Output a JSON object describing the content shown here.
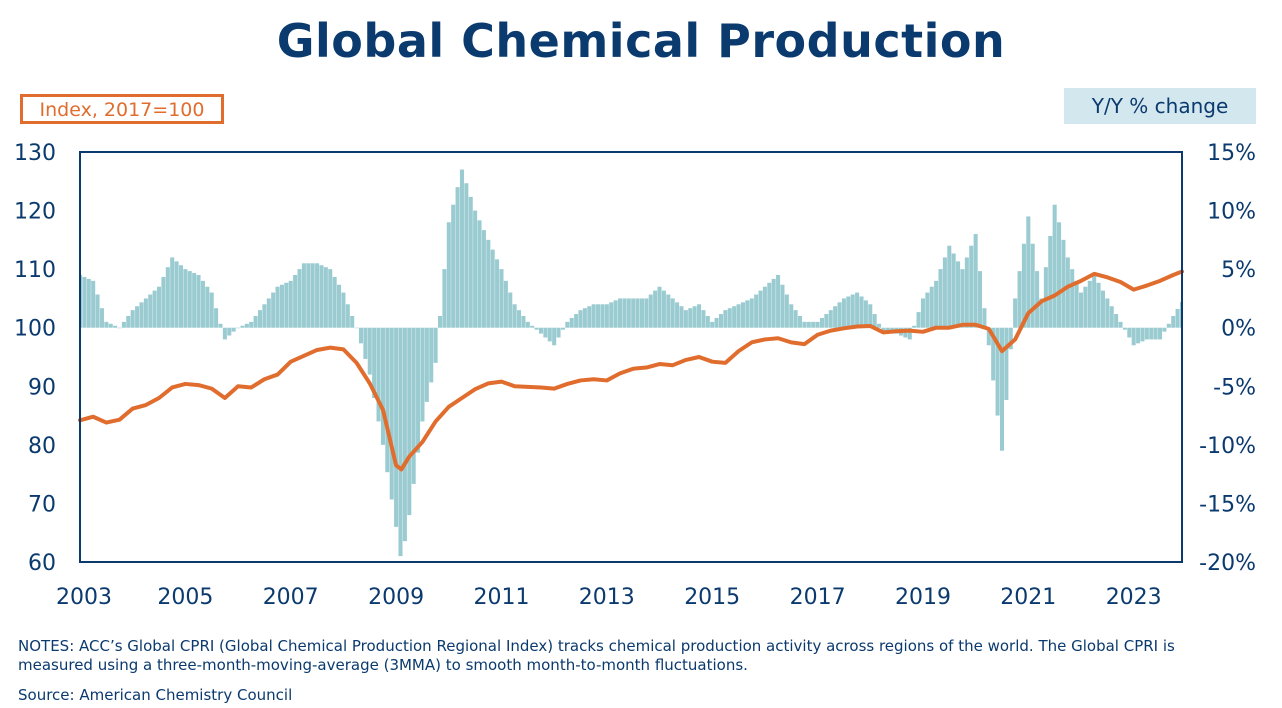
{
  "title": "Global Chemical Production",
  "notes": "NOTES: ACC’s Global CPRI (Global Chemical Production Regional Index) tracks chemical production activity across regions of the world. The Global CPRI is measured using a three-month-moving-average (3MMA) to smooth month-to-month fluctuations.",
  "source": "Source: American Chemistry Council",
  "colors": {
    "title": "#0b3a6e",
    "index_line": "#e06d2d",
    "yoy_bars": "#9acbd1",
    "axis_text": "#0b3a6e",
    "right_label_bg": "#d3e7ef"
  },
  "chart_data": {
    "type": "bar+line",
    "title": "Global Chemical Production",
    "left_axis_label": "Index, 2017=100",
    "right_axis_label": "Y/Y % change",
    "x_range": [
      2003.0,
      2023.917
    ],
    "x_ticks": [
      "2003",
      "2005",
      "2007",
      "2009",
      "2011",
      "2013",
      "2015",
      "2017",
      "2019",
      "2021",
      "2023"
    ],
    "ylim_left": [
      60,
      130
    ],
    "yticks_left": [
      "60",
      "70",
      "80",
      "90",
      "100",
      "110",
      "120",
      "130"
    ],
    "ylim_right": [
      -20,
      15
    ],
    "yticks_right": [
      "-20%",
      "-15%",
      "-10%",
      "-5%",
      "0%",
      "5%",
      "10%",
      "15%"
    ],
    "grid": false,
    "series": [
      {
        "name": "Index, 2017=100",
        "kind": "line",
        "axis": "left",
        "points": [
          [
            2003.0,
            84.2
          ],
          [
            2003.25,
            84.8
          ],
          [
            2003.5,
            83.8
          ],
          [
            2003.75,
            84.3
          ],
          [
            2004.0,
            86.2
          ],
          [
            2004.25,
            86.8
          ],
          [
            2004.5,
            88.0
          ],
          [
            2004.75,
            89.8
          ],
          [
            2005.0,
            90.4
          ],
          [
            2005.25,
            90.2
          ],
          [
            2005.5,
            89.6
          ],
          [
            2005.75,
            88.0
          ],
          [
            2006.0,
            90.0
          ],
          [
            2006.25,
            89.8
          ],
          [
            2006.5,
            91.2
          ],
          [
            2006.75,
            92.0
          ],
          [
            2007.0,
            94.2
          ],
          [
            2007.25,
            95.2
          ],
          [
            2007.5,
            96.2
          ],
          [
            2007.75,
            96.6
          ],
          [
            2008.0,
            96.3
          ],
          [
            2008.25,
            94.0
          ],
          [
            2008.5,
            90.5
          ],
          [
            2008.75,
            86.0
          ],
          [
            2009.0,
            76.5
          ],
          [
            2009.1,
            75.8
          ],
          [
            2009.25,
            78.0
          ],
          [
            2009.5,
            80.5
          ],
          [
            2009.75,
            84.0
          ],
          [
            2010.0,
            86.5
          ],
          [
            2010.25,
            88.0
          ],
          [
            2010.5,
            89.5
          ],
          [
            2010.75,
            90.5
          ],
          [
            2011.0,
            90.8
          ],
          [
            2011.25,
            90.0
          ],
          [
            2011.5,
            89.9
          ],
          [
            2011.75,
            89.8
          ],
          [
            2012.0,
            89.6
          ],
          [
            2012.25,
            90.4
          ],
          [
            2012.5,
            91.0
          ],
          [
            2012.75,
            91.2
          ],
          [
            2013.0,
            91.0
          ],
          [
            2013.25,
            92.2
          ],
          [
            2013.5,
            93.0
          ],
          [
            2013.75,
            93.2
          ],
          [
            2014.0,
            93.8
          ],
          [
            2014.25,
            93.6
          ],
          [
            2014.5,
            94.5
          ],
          [
            2014.75,
            95.0
          ],
          [
            2015.0,
            94.2
          ],
          [
            2015.25,
            94.0
          ],
          [
            2015.5,
            96.0
          ],
          [
            2015.75,
            97.5
          ],
          [
            2016.0,
            98.0
          ],
          [
            2016.25,
            98.2
          ],
          [
            2016.5,
            97.5
          ],
          [
            2016.75,
            97.2
          ],
          [
            2017.0,
            98.8
          ],
          [
            2017.25,
            99.5
          ],
          [
            2017.5,
            99.9
          ],
          [
            2017.75,
            100.2
          ],
          [
            2018.0,
            100.3
          ],
          [
            2018.25,
            99.2
          ],
          [
            2018.5,
            99.4
          ],
          [
            2018.75,
            99.5
          ],
          [
            2019.0,
            99.3
          ],
          [
            2019.25,
            100.0
          ],
          [
            2019.5,
            100.0
          ],
          [
            2019.75,
            100.5
          ],
          [
            2020.0,
            100.5
          ],
          [
            2020.25,
            99.8
          ],
          [
            2020.5,
            96.0
          ],
          [
            2020.75,
            98.0
          ],
          [
            2021.0,
            102.5
          ],
          [
            2021.25,
            104.5
          ],
          [
            2021.5,
            105.5
          ],
          [
            2021.75,
            107.0
          ],
          [
            2022.0,
            108.0
          ],
          [
            2022.25,
            109.2
          ],
          [
            2022.5,
            108.6
          ],
          [
            2022.75,
            107.8
          ],
          [
            2023.0,
            106.5
          ],
          [
            2023.25,
            107.2
          ],
          [
            2023.5,
            108.0
          ],
          [
            2023.75,
            109.0
          ],
          [
            2023.917,
            109.6
          ]
        ]
      },
      {
        "name": "Y/Y % change",
        "kind": "bar",
        "axis": "right",
        "points": [
          [
            2003.0,
            4.5
          ],
          [
            2003.25,
            4.0
          ],
          [
            2003.5,
            0.5
          ],
          [
            2003.75,
            0.0
          ],
          [
            2004.0,
            1.5
          ],
          [
            2004.25,
            2.5
          ],
          [
            2004.5,
            3.5
          ],
          [
            2004.75,
            6.0
          ],
          [
            2005.0,
            5.0
          ],
          [
            2005.25,
            4.5
          ],
          [
            2005.5,
            3.0
          ],
          [
            2005.75,
            -1.0
          ],
          [
            2006.0,
            0.0
          ],
          [
            2006.25,
            0.5
          ],
          [
            2006.5,
            2.0
          ],
          [
            2006.75,
            3.5
          ],
          [
            2007.0,
            4.0
          ],
          [
            2007.25,
            5.5
          ],
          [
            2007.5,
            5.5
          ],
          [
            2007.75,
            5.0
          ],
          [
            2008.0,
            3.0
          ],
          [
            2008.25,
            0.0
          ],
          [
            2008.5,
            -4.0
          ],
          [
            2008.75,
            -10.0
          ],
          [
            2009.0,
            -17.0
          ],
          [
            2009.1,
            -20.0
          ],
          [
            2009.25,
            -16.0
          ],
          [
            2009.5,
            -8.0
          ],
          [
            2009.75,
            -3.0
          ],
          [
            2010.0,
            9.0
          ],
          [
            2010.25,
            13.5
          ],
          [
            2010.5,
            10.0
          ],
          [
            2010.75,
            7.5
          ],
          [
            2011.0,
            5.0
          ],
          [
            2011.25,
            2.0
          ],
          [
            2011.5,
            0.5
          ],
          [
            2011.75,
            -0.5
          ],
          [
            2012.0,
            -1.5
          ],
          [
            2012.25,
            0.5
          ],
          [
            2012.5,
            1.5
          ],
          [
            2012.75,
            2.0
          ],
          [
            2013.0,
            2.0
          ],
          [
            2013.25,
            2.5
          ],
          [
            2013.5,
            2.5
          ],
          [
            2013.75,
            2.5
          ],
          [
            2014.0,
            3.5
          ],
          [
            2014.25,
            2.5
          ],
          [
            2014.5,
            1.5
          ],
          [
            2014.75,
            2.0
          ],
          [
            2015.0,
            0.5
          ],
          [
            2015.25,
            1.5
          ],
          [
            2015.5,
            2.0
          ],
          [
            2015.75,
            2.5
          ],
          [
            2016.0,
            3.5
          ],
          [
            2016.25,
            4.5
          ],
          [
            2016.5,
            2.0
          ],
          [
            2016.75,
            0.5
          ],
          [
            2017.0,
            0.5
          ],
          [
            2017.25,
            1.5
          ],
          [
            2017.5,
            2.5
          ],
          [
            2017.75,
            3.0
          ],
          [
            2018.0,
            2.0
          ],
          [
            2018.25,
            -0.5
          ],
          [
            2018.5,
            -0.5
          ],
          [
            2018.75,
            -1.0
          ],
          [
            2019.0,
            2.5
          ],
          [
            2019.25,
            4.0
          ],
          [
            2019.5,
            7.0
          ],
          [
            2019.75,
            5.0
          ],
          [
            2020.0,
            8.0
          ],
          [
            2020.25,
            -1.5
          ],
          [
            2020.5,
            -10.5
          ],
          [
            2020.75,
            2.5
          ],
          [
            2021.0,
            9.5
          ],
          [
            2021.25,
            2.5
          ],
          [
            2021.5,
            10.5
          ],
          [
            2021.75,
            6.0
          ],
          [
            2022.0,
            3.0
          ],
          [
            2022.25,
            4.5
          ],
          [
            2022.5,
            2.5
          ],
          [
            2022.75,
            0.5
          ],
          [
            2023.0,
            -1.5
          ],
          [
            2023.25,
            -1.0
          ],
          [
            2023.5,
            -1.0
          ],
          [
            2023.75,
            1.0
          ],
          [
            2023.917,
            2.2
          ]
        ]
      }
    ]
  }
}
